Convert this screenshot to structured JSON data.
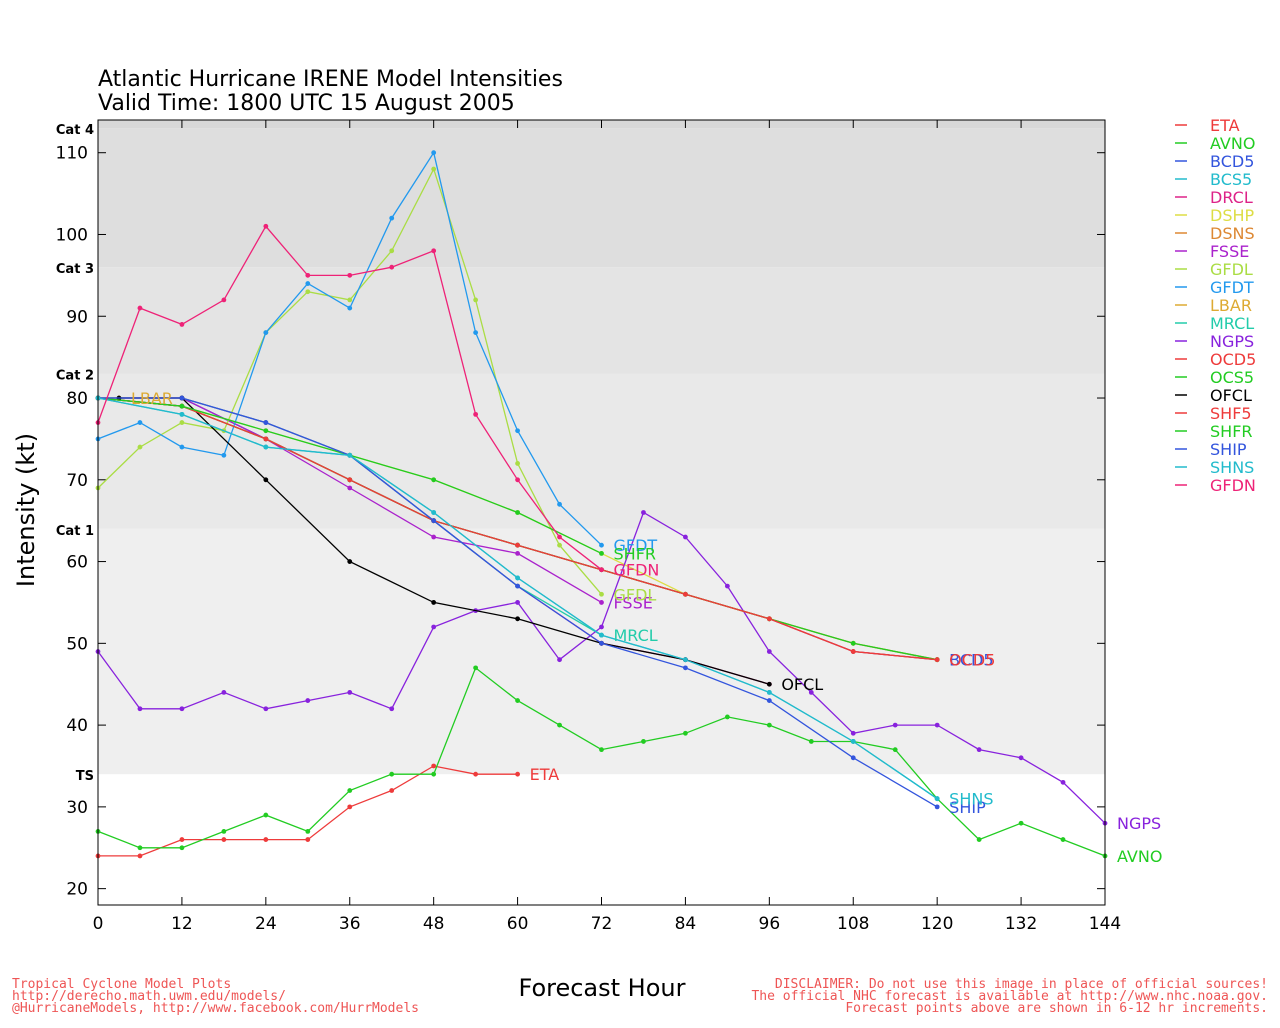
{
  "chart_data": {
    "type": "line",
    "title": "Atlantic Hurricane IRENE Model Intensities",
    "subtitle": "Valid Time: 1800 UTC 15 August 2005",
    "xlabel": "Forecast Hour",
    "ylabel": "Intensity (kt)",
    "xlim": [
      0,
      144
    ],
    "ylim": [
      18,
      114
    ],
    "xticks": [
      0,
      12,
      24,
      36,
      48,
      60,
      72,
      84,
      96,
      108,
      120,
      132,
      144
    ],
    "yticks": [
      20,
      30,
      40,
      50,
      60,
      70,
      80,
      90,
      100,
      110
    ],
    "legend_position": "right",
    "category_bands": [
      {
        "label": "TS",
        "from": 34,
        "to": 64,
        "color": "#efefef"
      },
      {
        "label": "Cat 1",
        "from": 64,
        "to": 83,
        "color": "#e9e9e9"
      },
      {
        "label": "Cat 2",
        "from": 83,
        "to": 96,
        "color": "#e4e4e4"
      },
      {
        "label": "Cat 3",
        "from": 96,
        "to": 113,
        "color": "#dedede"
      },
      {
        "label": "Cat 4",
        "from": 113,
        "to": 114,
        "color": "#d8d8d8"
      }
    ],
    "series": [
      {
        "name": "ETA",
        "color": "#ee3b3b",
        "end_label": "ETA",
        "points": [
          [
            0,
            24
          ],
          [
            6,
            24
          ],
          [
            12,
            26
          ],
          [
            18,
            26
          ],
          [
            24,
            26
          ],
          [
            30,
            26
          ],
          [
            36,
            30
          ],
          [
            42,
            32
          ],
          [
            48,
            35
          ],
          [
            54,
            34
          ],
          [
            60,
            34
          ]
        ]
      },
      {
        "name": "AVNO",
        "color": "#22cc22",
        "end_label": "AVNO",
        "points": [
          [
            0,
            27
          ],
          [
            6,
            25
          ],
          [
            12,
            25
          ],
          [
            18,
            27
          ],
          [
            24,
            29
          ],
          [
            30,
            27
          ],
          [
            36,
            32
          ],
          [
            42,
            34
          ],
          [
            48,
            34
          ],
          [
            54,
            47
          ],
          [
            60,
            43
          ],
          [
            66,
            40
          ],
          [
            72,
            37
          ],
          [
            78,
            38
          ],
          [
            84,
            39
          ],
          [
            90,
            41
          ],
          [
            96,
            40
          ],
          [
            102,
            38
          ],
          [
            108,
            38
          ],
          [
            114,
            37
          ],
          [
            120,
            31
          ],
          [
            126,
            26
          ],
          [
            132,
            28
          ],
          [
            138,
            26
          ],
          [
            144,
            24
          ]
        ]
      },
      {
        "name": "BCD5",
        "color": "#3355dd",
        "end_label": "BCD5",
        "points": [
          [
            0,
            80
          ],
          [
            12,
            80
          ],
          [
            24,
            75
          ],
          [
            36,
            70
          ],
          [
            48,
            65
          ],
          [
            60,
            62
          ],
          [
            72,
            59
          ],
          [
            84,
            56
          ],
          [
            96,
            53
          ],
          [
            108,
            49
          ],
          [
            120,
            48
          ]
        ]
      },
      {
        "name": "BCS5",
        "color": "#22bbcc",
        "end_label": "",
        "points": [
          [
            0,
            80
          ],
          [
            12,
            78
          ],
          [
            24,
            74
          ],
          [
            36,
            73
          ],
          [
            48,
            66
          ],
          [
            60,
            58
          ],
          [
            72,
            51
          ],
          [
            84,
            48
          ],
          [
            96,
            44
          ],
          [
            108,
            38
          ],
          [
            120,
            31
          ]
        ]
      },
      {
        "name": "DRCL",
        "color": "#dd2288",
        "end_label": "",
        "points": [
          [
            0,
            80
          ],
          [
            12,
            80
          ],
          [
            24,
            77
          ],
          [
            36,
            73
          ],
          [
            48,
            65
          ],
          [
            60,
            57
          ],
          [
            72,
            50
          ],
          [
            84,
            48
          ],
          [
            96,
            45
          ]
        ]
      },
      {
        "name": "DSHP",
        "color": "#dddd44",
        "end_label": "",
        "points": [
          [
            0,
            80
          ],
          [
            12,
            79
          ],
          [
            24,
            76
          ],
          [
            36,
            73
          ],
          [
            48,
            70
          ],
          [
            60,
            66
          ],
          [
            72,
            61
          ],
          [
            84,
            56
          ],
          [
            96,
            53
          ],
          [
            108,
            50
          ],
          [
            120,
            48
          ]
        ]
      },
      {
        "name": "DSNS",
        "color": "#dd8833",
        "end_label": "",
        "points": [
          [
            0,
            80
          ],
          [
            12,
            79
          ],
          [
            24,
            75
          ],
          [
            36,
            70
          ],
          [
            48,
            65
          ],
          [
            60,
            62
          ],
          [
            72,
            59
          ],
          [
            84,
            56
          ],
          [
            96,
            53
          ],
          [
            108,
            50
          ],
          [
            120,
            48
          ]
        ]
      },
      {
        "name": "FSSE",
        "color": "#aa22cc",
        "end_label": "FSSE",
        "points": [
          [
            0,
            80
          ],
          [
            12,
            80
          ],
          [
            24,
            75
          ],
          [
            36,
            69
          ],
          [
            48,
            63
          ],
          [
            60,
            61
          ],
          [
            72,
            55
          ]
        ]
      },
      {
        "name": "GFDL",
        "color": "#aadd44",
        "end_label": "GFDL",
        "points": [
          [
            0,
            69
          ],
          [
            6,
            74
          ],
          [
            12,
            77
          ],
          [
            18,
            76
          ],
          [
            24,
            88
          ],
          [
            30,
            93
          ],
          [
            36,
            92
          ],
          [
            42,
            98
          ],
          [
            48,
            108
          ],
          [
            54,
            92
          ],
          [
            60,
            72
          ],
          [
            66,
            62
          ],
          [
            72,
            56
          ]
        ]
      },
      {
        "name": "GFDT",
        "color": "#2299ee",
        "end_label": "GFDT",
        "points": [
          [
            0,
            75
          ],
          [
            6,
            77
          ],
          [
            12,
            74
          ],
          [
            18,
            73
          ],
          [
            24,
            88
          ],
          [
            30,
            94
          ],
          [
            36,
            91
          ],
          [
            42,
            102
          ],
          [
            48,
            110
          ],
          [
            54,
            88
          ],
          [
            60,
            76
          ],
          [
            66,
            67
          ],
          [
            72,
            62
          ]
        ]
      },
      {
        "name": "LBAR",
        "color": "#ddaa33",
        "end_label": "LBAR",
        "points": [
          [
            0,
            80
          ],
          [
            3,
            80
          ]
        ]
      },
      {
        "name": "MRCL",
        "color": "#22ccaa",
        "end_label": "MRCL",
        "points": [
          [
            0,
            80
          ],
          [
            12,
            80
          ],
          [
            24,
            77
          ],
          [
            36,
            73
          ],
          [
            48,
            65
          ],
          [
            60,
            57
          ],
          [
            72,
            51
          ]
        ]
      },
      {
        "name": "NGPS",
        "color": "#8822dd",
        "end_label": "NGPS",
        "points": [
          [
            0,
            49
          ],
          [
            6,
            42
          ],
          [
            12,
            42
          ],
          [
            18,
            44
          ],
          [
            24,
            42
          ],
          [
            30,
            43
          ],
          [
            36,
            44
          ],
          [
            42,
            42
          ],
          [
            48,
            52
          ],
          [
            54,
            54
          ],
          [
            60,
            55
          ],
          [
            66,
            48
          ],
          [
            72,
            52
          ],
          [
            78,
            66
          ],
          [
            84,
            63
          ],
          [
            90,
            57
          ],
          [
            96,
            49
          ],
          [
            102,
            44
          ],
          [
            108,
            39
          ],
          [
            114,
            40
          ],
          [
            120,
            40
          ],
          [
            126,
            37
          ],
          [
            132,
            36
          ],
          [
            138,
            33
          ],
          [
            144,
            28
          ]
        ]
      },
      {
        "name": "OCD5",
        "color": "#ee3b3b",
        "end_label": "OCD5",
        "points": [
          [
            0,
            80
          ],
          [
            12,
            79
          ],
          [
            24,
            75
          ],
          [
            36,
            70
          ],
          [
            48,
            65
          ],
          [
            60,
            62
          ],
          [
            72,
            59
          ],
          [
            84,
            56
          ],
          [
            96,
            53
          ],
          [
            108,
            49
          ],
          [
            120,
            48
          ]
        ]
      },
      {
        "name": "OCS5",
        "color": "#22cc22",
        "end_label": "",
        "points": [
          [
            0,
            80
          ],
          [
            12,
            79
          ],
          [
            24,
            75
          ],
          [
            36,
            70
          ],
          [
            48,
            65
          ],
          [
            60,
            62
          ],
          [
            72,
            59
          ],
          [
            84,
            56
          ],
          [
            96,
            53
          ],
          [
            108,
            50
          ],
          [
            120,
            48
          ]
        ]
      },
      {
        "name": "OFCL",
        "color": "#000000",
        "end_label": "OFCL",
        "points": [
          [
            3,
            80
          ],
          [
            12,
            80
          ],
          [
            24,
            70
          ],
          [
            36,
            60
          ],
          [
            48,
            55
          ],
          [
            60,
            53
          ],
          [
            72,
            50
          ],
          [
            84,
            48
          ],
          [
            96,
            45
          ]
        ]
      },
      {
        "name": "SHF5",
        "color": "#ee3b3b",
        "end_label": "",
        "points": [
          [
            0,
            80
          ],
          [
            12,
            79
          ],
          [
            24,
            75
          ],
          [
            36,
            70
          ],
          [
            48,
            65
          ],
          [
            60,
            62
          ],
          [
            72,
            59
          ],
          [
            84,
            56
          ],
          [
            96,
            53
          ],
          [
            108,
            49
          ],
          [
            120,
            48
          ]
        ]
      },
      {
        "name": "SHFR",
        "color": "#22cc22",
        "end_label": "SHFR",
        "points": [
          [
            0,
            80
          ],
          [
            12,
            79
          ],
          [
            24,
            76
          ],
          [
            36,
            73
          ],
          [
            48,
            70
          ],
          [
            60,
            66
          ],
          [
            72,
            61
          ]
        ]
      },
      {
        "name": "SHIP",
        "color": "#3355dd",
        "end_label": "SHIP",
        "points": [
          [
            0,
            80
          ],
          [
            12,
            80
          ],
          [
            24,
            77
          ],
          [
            36,
            73
          ],
          [
            48,
            65
          ],
          [
            60,
            57
          ],
          [
            72,
            50
          ],
          [
            84,
            47
          ],
          [
            96,
            43
          ],
          [
            108,
            36
          ],
          [
            120,
            30
          ]
        ]
      },
      {
        "name": "SHNS",
        "color": "#22bbcc",
        "end_label": "SHNS",
        "points": [
          [
            0,
            80
          ],
          [
            12,
            78
          ],
          [
            24,
            74
          ],
          [
            36,
            73
          ],
          [
            48,
            66
          ],
          [
            60,
            58
          ],
          [
            72,
            51
          ],
          [
            84,
            48
          ],
          [
            96,
            44
          ],
          [
            108,
            38
          ],
          [
            120,
            31
          ]
        ]
      },
      {
        "name": "GFDN",
        "color": "#ee2277",
        "end_label": "GFDN",
        "points": [
          [
            0,
            77
          ],
          [
            6,
            91
          ],
          [
            12,
            89
          ],
          [
            18,
            92
          ],
          [
            24,
            101
          ],
          [
            30,
            95
          ],
          [
            36,
            95
          ],
          [
            42,
            96
          ],
          [
            48,
            98
          ],
          [
            54,
            78
          ],
          [
            60,
            70
          ],
          [
            66,
            63
          ],
          [
            72,
            59
          ]
        ]
      }
    ]
  },
  "footer": {
    "left_line1": "Tropical Cyclone Model Plots",
    "left_line2": "http://derecho.math.uwm.edu/models/",
    "left_line3": "@HurricaneModels, http://www.facebook.com/HurrModels",
    "right_line1": "DISCLAIMER: Do not use this image in place of official sources!",
    "right_line2": "The official NHC forecast is available at http://www.nhc.noaa.gov.",
    "right_line3": "Forecast points above are shown in 6-12 hr increments.",
    "color": "#ee5555"
  }
}
